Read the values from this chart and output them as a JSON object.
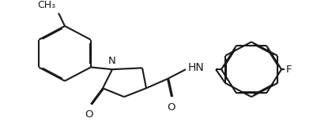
{
  "bg_color": "#ffffff",
  "line_color": "#1a1a1a",
  "line_width": 1.5,
  "dbo": 0.012,
  "font_size": 9.5,
  "fig_width": 4.2,
  "fig_height": 1.69,
  "xlim": [
    0,
    4.2
  ],
  "ylim": [
    0,
    1.69
  ]
}
